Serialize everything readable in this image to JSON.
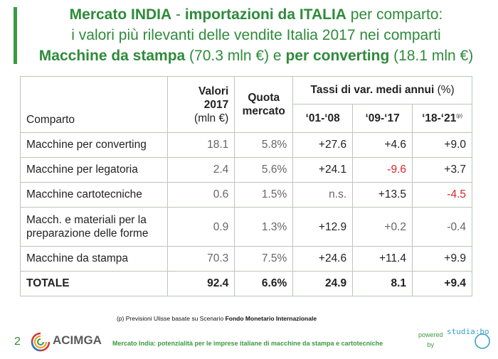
{
  "title": {
    "line1_a": "Mercato INDIA",
    "line1_b": " - ",
    "line1_c": "importazioni da ITALIA",
    "line1_d": " per comparto:",
    "line2": "i valori più rilevanti delle vendite Italia 2017 nei comparti",
    "line3_a": "Macchine da stampa",
    "line3_b": " (70.3 mln €) e ",
    "line3_c": "per converting",
    "line3_d": " (18.1 mln €)"
  },
  "table": {
    "headers": {
      "comparto": "Comparto",
      "valori_line1": "Valori 2017",
      "valori_line2": "(mln €)",
      "quota_line1": "Quota",
      "quota_line2": "mercato",
      "tassi_a": "Tassi di var. medi annui",
      "tassi_b": " (%)",
      "p1": "‘01-‘08",
      "p2": "‘09-‘17",
      "p3": "‘18-‘21",
      "p3_note": "(p)"
    },
    "rows": [
      {
        "name": "Macchine per converting",
        "valore": "18.1",
        "quota": "5.8%",
        "r1": "+27.6",
        "r2": "+4.6",
        "r3": "+9.0"
      },
      {
        "name": "Macchine per legatoria",
        "valore": "2.4",
        "quota": "5.6%",
        "r1": "+24.1",
        "r2": "-9.6",
        "r3": "+3.7"
      },
      {
        "name": "Macchine cartotecniche",
        "valore": "0.6",
        "quota": "1.5%",
        "r1": "n.s.",
        "r2": "+13.5",
        "r3": "-4.5"
      },
      {
        "name_line1": "Macch. e materiali per la",
        "name_line2": "preparazione delle forme",
        "valore": "0.9",
        "quota": "1.3%",
        "r1": "+12.9",
        "r2": "+0.2",
        "r3": "-0.4"
      },
      {
        "name": "Macchine da stampa",
        "valore": "70.3",
        "quota": "7.5%",
        "r1": "+24.6",
        "r2": "+11.4",
        "r3": "+9.9"
      }
    ],
    "total": {
      "name": "TOTALE",
      "valore": "92.4",
      "quota": "6.6%",
      "r1": "24.9",
      "r2": "8.1",
      "r3": "+9.4"
    }
  },
  "footnote": {
    "a": "(p) Previsioni Ulisse basate su Scenario ",
    "b": "Fondo Monetario  Internazionale"
  },
  "footer": {
    "page_number": "2",
    "logo_text": "ACIMGA",
    "subtitle": "Mercato India: potenzialità per le imprese italiane di macchine da stampa e cartotecniche",
    "powered_line1": "powered",
    "powered_line2": "by",
    "studia_text": "studia:bo"
  },
  "colors": {
    "accent_green": "#2e8b3a",
    "negative_red": "#d6262b",
    "studia_blue": "#3b9fc4"
  }
}
